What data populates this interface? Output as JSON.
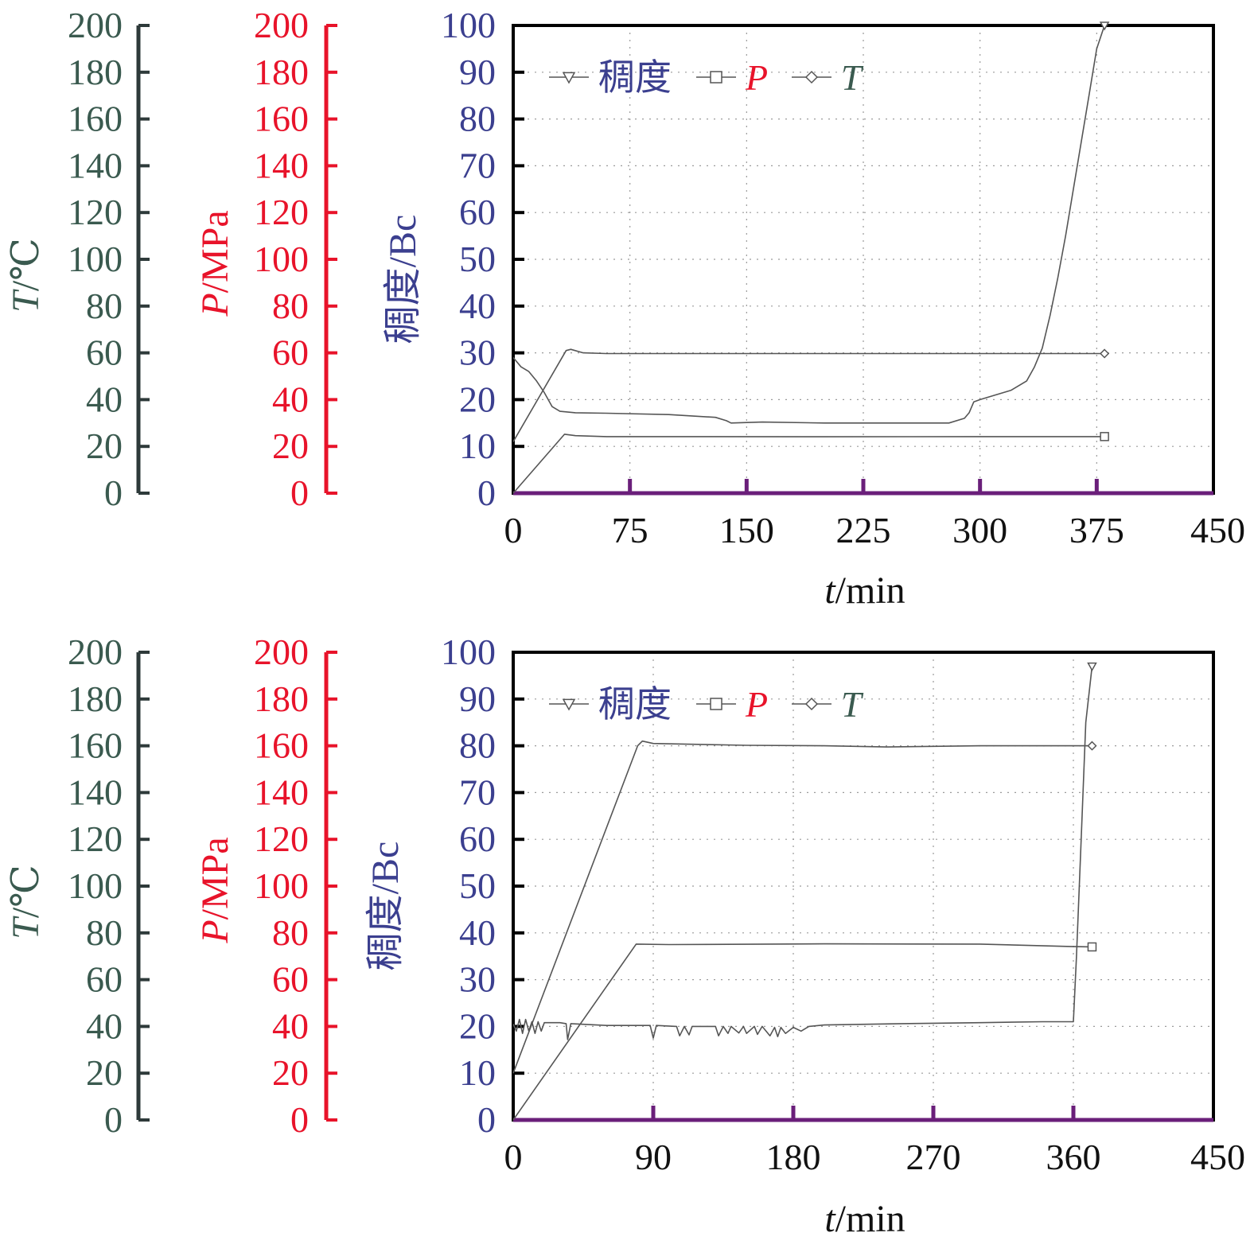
{
  "colors": {
    "temperature_axis": "#3a5a4f",
    "pressure_axis": "#e8132a",
    "consistency_axis": "#3b3f8f",
    "axis_line": "#2e3a3a",
    "x_axis": "#6a1f7a",
    "frame": "#000000",
    "grid": "#9a9a9a",
    "series": "#555555"
  },
  "chart_data": [
    {
      "type": "line",
      "xlabel": "t/min",
      "xlabel_italic": "t",
      "xlabel_unit": "/min",
      "xlim": [
        0,
        450
      ],
      "xticks": [
        "0",
        "75",
        "150",
        "225",
        "300",
        "375",
        "450"
      ],
      "grid": true,
      "legend_placement": "top-left",
      "axes": [
        {
          "id": "T",
          "label": "T/℃",
          "italic": "T",
          "unit": "/℃",
          "range": [
            0,
            200
          ],
          "ticks": [
            "0",
            "20",
            "40",
            "60",
            "80",
            "100",
            "120",
            "140",
            "160",
            "180",
            "200"
          ]
        },
        {
          "id": "P",
          "label": "P/MPa",
          "italic": "P",
          "unit": "/MPa",
          "range": [
            0,
            200
          ],
          "ticks": [
            "0",
            "20",
            "40",
            "60",
            "80",
            "100",
            "120",
            "140",
            "160",
            "180",
            "200"
          ]
        },
        {
          "id": "consistency",
          "label": "稠度/Bc",
          "range": [
            0,
            100
          ],
          "ticks": [
            "0",
            "10",
            "20",
            "30",
            "40",
            "50",
            "60",
            "70",
            "80",
            "90",
            "100"
          ]
        }
      ],
      "legend": [
        {
          "label": "稠度",
          "italic": false,
          "marker": "triangle-down"
        },
        {
          "label": "P",
          "italic": true,
          "marker": "square"
        },
        {
          "label": "T",
          "italic": true,
          "marker": "diamond"
        }
      ],
      "series": [
        {
          "name": "稠度",
          "axis": "consistency",
          "marker": "triangle-down",
          "x": [
            0,
            5,
            10,
            15,
            20,
            25,
            30,
            40,
            60,
            100,
            130,
            137,
            140,
            160,
            200,
            250,
            280,
            290,
            293,
            296,
            300,
            310,
            320,
            330,
            335,
            340,
            345,
            350,
            355,
            360,
            365,
            370,
            375,
            380
          ],
          "y": [
            29,
            27,
            26,
            24,
            21.5,
            18.5,
            17.5,
            17.2,
            17.1,
            16.8,
            16.2,
            15.5,
            15.0,
            15.2,
            15.0,
            15.0,
            15.0,
            16.0,
            17.2,
            19.5,
            20.0,
            21.0,
            22.0,
            24.0,
            27.0,
            31.0,
            38.0,
            46.0,
            55.0,
            65.0,
            75.0,
            85.0,
            95.0,
            100
          ]
        },
        {
          "name": "P",
          "axis": "P",
          "marker": "square",
          "x": [
            0,
            33,
            40,
            60,
            100,
            200,
            300,
            380
          ],
          "y": [
            0,
            25.2,
            24.6,
            24.2,
            24.2,
            24.1,
            24.2,
            24.2
          ]
        },
        {
          "name": "T",
          "axis": "T",
          "marker": "diamond",
          "x": [
            0,
            34,
            37,
            45,
            60,
            100,
            200,
            300,
            380
          ],
          "y": [
            22,
            61,
            61.5,
            60,
            59.7,
            59.7,
            59.7,
            59.7,
            59.7
          ]
        }
      ]
    },
    {
      "type": "line",
      "xlabel": "t/min",
      "xlabel_italic": "t",
      "xlabel_unit": "/min",
      "xlim": [
        0,
        450
      ],
      "xticks": [
        "0",
        "90",
        "180",
        "270",
        "360",
        "450"
      ],
      "grid": true,
      "legend_placement": "top-left",
      "axes": [
        {
          "id": "T",
          "label": "T/℃",
          "italic": "T",
          "unit": "/℃",
          "range": [
            0,
            200
          ],
          "ticks": [
            "0",
            "20",
            "40",
            "60",
            "80",
            "100",
            "120",
            "140",
            "160",
            "180",
            "200"
          ]
        },
        {
          "id": "P",
          "label": "P/MPa",
          "italic": "P",
          "unit": "/MPa",
          "range": [
            0,
            200
          ],
          "ticks": [
            "0",
            "20",
            "40",
            "60",
            "80",
            "100",
            "120",
            "140",
            "160",
            "180",
            "200"
          ]
        },
        {
          "id": "consistency",
          "label": "稠度/Bc",
          "range": [
            0,
            100
          ],
          "ticks": [
            "0",
            "10",
            "20",
            "30",
            "40",
            "50",
            "60",
            "70",
            "80",
            "90",
            "100"
          ]
        }
      ],
      "legend": [
        {
          "label": "稠度",
          "italic": false,
          "marker": "triangle-down"
        },
        {
          "label": "P",
          "italic": true,
          "marker": "square"
        },
        {
          "label": "T",
          "italic": true,
          "marker": "diamond"
        }
      ],
      "series": [
        {
          "name": "稠度",
          "axis": "consistency",
          "marker": "triangle-down",
          "x": [
            0,
            2,
            4,
            6,
            8,
            10,
            12,
            14,
            16,
            18,
            20,
            30,
            34,
            35,
            37,
            60,
            88,
            90,
            92,
            105,
            107,
            110,
            113,
            115,
            130,
            132,
            135,
            138,
            140,
            145,
            148,
            150,
            155,
            157,
            160,
            165,
            168,
            170,
            172,
            175,
            180,
            185,
            190,
            200,
            250,
            300,
            340,
            360,
            362,
            365,
            368,
            372
          ],
          "y": [
            20.5,
            19.0,
            21.5,
            18.5,
            21.5,
            19.0,
            21.0,
            18.5,
            21.0,
            19.0,
            20.8,
            20.8,
            20.6,
            17.2,
            20.6,
            20.2,
            20.2,
            17.5,
            20.2,
            20.0,
            18.0,
            20.0,
            18.2,
            20.0,
            20.0,
            18.0,
            20.0,
            18.5,
            20.0,
            18.6,
            20.0,
            18.5,
            20.0,
            18.3,
            20.0,
            18.0,
            19.8,
            17.8,
            19.8,
            18.5,
            19.8,
            19.0,
            20.0,
            20.3,
            20.6,
            20.8,
            21.0,
            21.0,
            35.0,
            60.0,
            85.0,
            97.0
          ]
        },
        {
          "name": "P",
          "axis": "P",
          "marker": "square",
          "x": [
            0,
            79,
            100,
            200,
            300,
            358,
            372
          ],
          "y": [
            0,
            75.2,
            75.0,
            75.3,
            75.2,
            74.2,
            74.0
          ]
        },
        {
          "name": "T",
          "axis": "T",
          "marker": "diamond",
          "x": [
            0,
            80,
            83,
            90,
            150,
            200,
            240,
            300,
            360,
            372
          ],
          "y": [
            20,
            160,
            162,
            161,
            160.2,
            160,
            159.5,
            160,
            160,
            160
          ]
        }
      ]
    }
  ]
}
